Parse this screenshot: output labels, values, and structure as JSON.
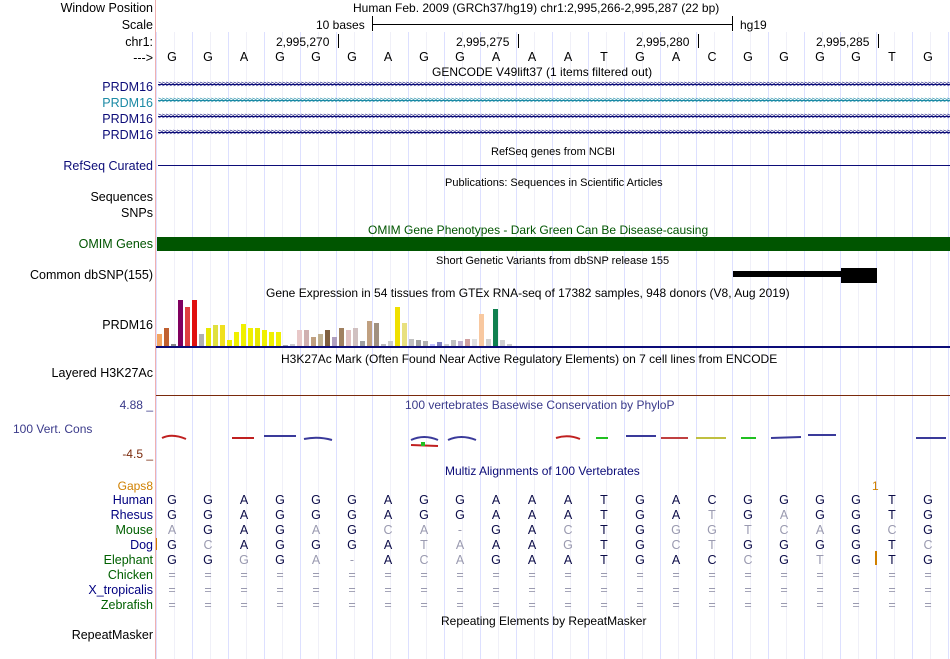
{
  "header": {
    "window_position_label": "Window Position",
    "assembly_text": "Human Feb. 2009 (GRCh37/hg19)   chr1:2,995,266-2,995,287 (22 bp)",
    "scale_label": "Scale",
    "scale_text": "10 bases",
    "scale_assembly": "hg19",
    "chrom_label": "chr1:",
    "ticks": [
      "2,995,270",
      "2,995,275",
      "2,995,280",
      "2,995,285"
    ],
    "strand_label": "--->"
  },
  "sequence": [
    "G",
    "G",
    "A",
    "G",
    "G",
    "G",
    "A",
    "G",
    "G",
    "A",
    "A",
    "A",
    "T",
    "G",
    "A",
    "C",
    "G",
    "G",
    "G",
    "G",
    "T",
    "G"
  ],
  "tracks": {
    "gencode_title": "GENCODE V49lift37 (1 items filtered out)",
    "gencode_genes": [
      "PRDM16",
      "PRDM16",
      "PRDM16",
      "PRDM16"
    ],
    "refseq_label": "RefSeq Curated",
    "refseq_title": "RefSeq genes from NCBI",
    "publications_title": "Publications: Sequences in Scientific Articles",
    "sequences_label": "Sequences",
    "snps_label": "SNPs",
    "omim_title": "OMIM Gene Phenotypes - Dark Green Can Be Disease-causing",
    "omim_label": "OMIM Genes",
    "dbsnp_title": "Short Genetic Variants from dbSNP release 155",
    "dbsnp_label": "Common dbSNP(155)",
    "gtex_title": "Gene Expression in 54 tissues from GTEx RNA-seq of 17382 samples, 948 donors (V8, Aug 2019)",
    "gtex_label": "PRDM16",
    "h3k27ac_title": "H3K27Ac Mark (Often Found Near Active Regulatory Elements) on 7 cell lines from ENCODE",
    "h3k27ac_label": "Layered H3K27Ac",
    "cons_title": "100 vertebrates Basewise Conservation by PhyloP",
    "cons_max": "4.88 _",
    "cons_label": "100 Vert. Cons",
    "cons_min": "-4.5 _",
    "multiz_title": "Multiz Alignments of 100 Vertebrates",
    "gaps_label": "Gaps",
    "gaps_left_value": "8",
    "gaps_right_value": "1",
    "repeat_title": "Repeating Elements by RepeatMasker",
    "repeat_label": "RepeatMasker"
  },
  "gtex_values": [
    {
      "h": 0.25,
      "c": "#f4a460"
    },
    {
      "h": 0.4,
      "c": "#c06030"
    },
    {
      "h": 0.05,
      "c": "#888888"
    },
    {
      "h": 1.0,
      "c": "#800060"
    },
    {
      "h": 0.85,
      "c": "#e04040"
    },
    {
      "h": 1.0,
      "c": "#e01010"
    },
    {
      "h": 0.25,
      "c": "#b0b0b0"
    },
    {
      "h": 0.4,
      "c": "#e8e800"
    },
    {
      "h": 0.45,
      "c": "#e0e040"
    },
    {
      "h": 0.45,
      "c": "#f0e020"
    },
    {
      "h": 0.12,
      "c": "#f0f000"
    },
    {
      "h": 0.3,
      "c": "#f0f000"
    },
    {
      "h": 0.48,
      "c": "#f0f000"
    },
    {
      "h": 0.4,
      "c": "#f0f000"
    },
    {
      "h": 0.4,
      "c": "#e8e800"
    },
    {
      "h": 0.35,
      "c": "#f0f000"
    },
    {
      "h": 0.3,
      "c": "#f0f000"
    },
    {
      "h": 0.3,
      "c": "#f0f000"
    },
    {
      "h": 0.02,
      "c": "#aaaaaa"
    },
    {
      "h": 0.05,
      "c": "#cccccc"
    },
    {
      "h": 0.35,
      "c": "#e8c8c8"
    },
    {
      "h": 0.35,
      "c": "#d0b0b0"
    },
    {
      "h": 0.2,
      "c": "#c0a080"
    },
    {
      "h": 0.25,
      "c": "#c0b090"
    },
    {
      "h": 0.35,
      "c": "#806040"
    },
    {
      "h": 0.2,
      "c": "#b0a0c0"
    },
    {
      "h": 0.4,
      "c": "#a08060"
    },
    {
      "h": 0.35,
      "c": "#e0c0c0"
    },
    {
      "h": 0.4,
      "c": "#d0c0c0"
    },
    {
      "h": 0.1,
      "c": "#a0a0a0"
    },
    {
      "h": 0.55,
      "c": "#c0a080"
    },
    {
      "h": 0.5,
      "c": "#a09080"
    },
    {
      "h": 0.05,
      "c": "#bbbbbb"
    },
    {
      "h": 0.1,
      "c": "#cccccc"
    },
    {
      "h": 0.85,
      "c": "#f0e000"
    },
    {
      "h": 0.5,
      "c": "#e8e080"
    },
    {
      "h": 0.15,
      "c": "#c0c0c0"
    },
    {
      "h": 0.12,
      "c": "#a0a0a0"
    },
    {
      "h": 0.1,
      "c": "#b0b0b0"
    },
    {
      "h": 0.05,
      "c": "#c0c0ff"
    },
    {
      "h": 0.08,
      "c": "#8080c0"
    },
    {
      "h": 0.05,
      "c": "#d0d0d0"
    },
    {
      "h": 0.12,
      "c": "#c0c0c0"
    },
    {
      "h": 0.1,
      "c": "#c0b0d0"
    },
    {
      "h": 0.15,
      "c": "#d0a0a0"
    },
    {
      "h": 0.15,
      "c": "#e0e0e0"
    },
    {
      "h": 0.7,
      "c": "#f8c8a0"
    },
    {
      "h": 0.15,
      "c": "#d0d0d0"
    },
    {
      "h": 0.8,
      "c": "#108050"
    },
    {
      "h": 0.12,
      "c": "#d0d0d0"
    },
    {
      "h": 0.05,
      "c": "#cccccc"
    }
  ],
  "multiz": {
    "species": [
      {
        "name": "Human",
        "color": "#000080",
        "bases": [
          "G",
          "G",
          "A",
          "G",
          "G",
          "G",
          "A",
          "G",
          "G",
          "A",
          "A",
          "A",
          "T",
          "G",
          "A",
          "C",
          "G",
          "G",
          "G",
          "G",
          "T",
          "G"
        ],
        "dim": []
      },
      {
        "name": "Rhesus",
        "color": "#000080",
        "bases": [
          "G",
          "G",
          "A",
          "G",
          "G",
          "G",
          "A",
          "G",
          "G",
          "A",
          "A",
          "A",
          "T",
          "G",
          "A",
          "T",
          "G",
          "A",
          "G",
          "G",
          "T",
          "G"
        ],
        "dim": [
          15,
          17
        ]
      },
      {
        "name": "Mouse",
        "color": "#006000",
        "bases": [
          "A",
          "G",
          "A",
          "G",
          "A",
          "G",
          "C",
          "A",
          "-",
          "G",
          "A",
          "C",
          "T",
          "G",
          "G",
          "G",
          "T",
          "C",
          "A",
          "G",
          "C",
          "G"
        ],
        "dim": [
          0,
          4,
          6,
          7,
          8,
          11,
          14,
          15,
          16,
          17,
          18,
          20
        ]
      },
      {
        "name": "Dog",
        "color": "#000080",
        "bases": [
          "G",
          "C",
          "A",
          "G",
          "G",
          "G",
          "A",
          "T",
          "A",
          "A",
          "A",
          "G",
          "T",
          "G",
          "C",
          "T",
          "G",
          "G",
          "G",
          "G",
          "T",
          "C"
        ],
        "dim": [
          1,
          7,
          8,
          11,
          14,
          15,
          21
        ]
      },
      {
        "name": "Elephant",
        "color": "#006000",
        "bases": [
          "G",
          "G",
          "G",
          "G",
          "A",
          "-",
          "A",
          "C",
          "A",
          "G",
          "A",
          "A",
          "T",
          "G",
          "A",
          "C",
          "C",
          "G",
          "T",
          "G",
          "T",
          "G"
        ],
        "dim": [
          2,
          4,
          5,
          7,
          8,
          16,
          18
        ]
      },
      {
        "name": "Chicken",
        "color": "#006000",
        "bases": [
          "=",
          "=",
          "=",
          "=",
          "=",
          "=",
          "=",
          "=",
          "=",
          "=",
          "=",
          "=",
          "=",
          "=",
          "=",
          "=",
          "=",
          "=",
          "=",
          "=",
          "=",
          "="
        ],
        "dim": "all"
      },
      {
        "name": "X_tropicalis",
        "color": "#000080",
        "bases": [
          "=",
          "=",
          "=",
          "=",
          "=",
          "=",
          "=",
          "=",
          "=",
          "=",
          "=",
          "=",
          "=",
          "=",
          "=",
          "=",
          "=",
          "=",
          "=",
          "=",
          "=",
          "="
        ],
        "dim": "all"
      },
      {
        "name": "Zebrafish",
        "color": "#006000",
        "bases": [
          "=",
          "=",
          "=",
          "=",
          "=",
          "=",
          "=",
          "=",
          "=",
          "=",
          "=",
          "=",
          "=",
          "=",
          "=",
          "=",
          "=",
          "=",
          "=",
          "=",
          "=",
          "="
        ],
        "dim": "all"
      }
    ]
  }
}
